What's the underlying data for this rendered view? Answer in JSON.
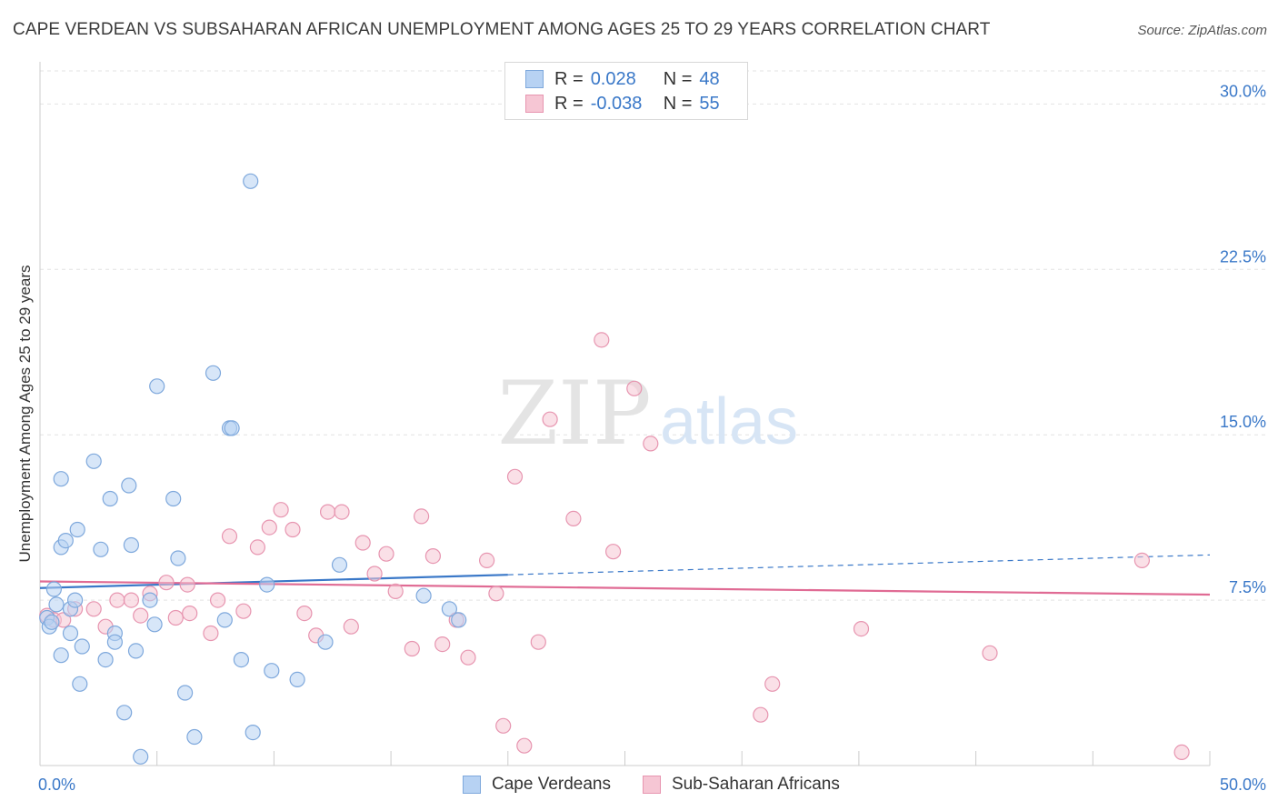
{
  "title": "CAPE VERDEAN VS SUBSAHARAN AFRICAN UNEMPLOYMENT AMONG AGES 25 TO 29 YEARS CORRELATION CHART",
  "source": "Source: ZipAtlas.com",
  "legend": {
    "r_label": "R =",
    "n_label": "N =",
    "rows": [
      {
        "name": "Cape Verdeans",
        "r": "0.028",
        "n": "48"
      },
      {
        "name": "Sub-Saharan Africans",
        "r": "-0.038",
        "n": "55"
      }
    ]
  },
  "watermark": {
    "zip": "ZIP",
    "atlas": "atlas"
  },
  "colors": {
    "blue_fill": "#b7d2f3",
    "blue_stroke": "#7ea8dc",
    "blue_line": "#3a78c8",
    "pink_fill": "#f6c6d4",
    "pink_stroke": "#e795b0",
    "pink_line": "#e06b94",
    "axis_text": "#3a78c8",
    "grid": "#e3e3e3"
  },
  "chart_data": {
    "type": "scatter",
    "title": "CAPE VERDEAN VS SUBSAHARAN AFRICAN UNEMPLOYMENT AMONG AGES 25 TO 29 YEARS CORRELATION CHART",
    "xlabel": "",
    "ylabel": "Unemployment Among Ages 25 to 29 years",
    "xlim": [
      0,
      50
    ],
    "ylim": [
      0,
      31.5
    ],
    "x_tick_labels": [
      {
        "value": 0,
        "label": "0.0%"
      },
      {
        "value": 50,
        "label": "50.0%"
      }
    ],
    "y_tick_labels": [
      {
        "value": 7.5,
        "label": "7.5%"
      },
      {
        "value": 15,
        "label": "15.0%"
      },
      {
        "value": 22.5,
        "label": "22.5%"
      },
      {
        "value": 30,
        "label": "30.0%"
      }
    ],
    "series": [
      {
        "name": "Cape Verdeans",
        "color": "blue",
        "points": [
          [
            0.3,
            6.7
          ],
          [
            0.4,
            6.3
          ],
          [
            0.5,
            6.5
          ],
          [
            0.6,
            8.0
          ],
          [
            0.7,
            7.3
          ],
          [
            0.9,
            5.0
          ],
          [
            0.9,
            9.9
          ],
          [
            0.9,
            13.0
          ],
          [
            1.1,
            10.2
          ],
          [
            1.3,
            7.1
          ],
          [
            1.3,
            6.0
          ],
          [
            1.5,
            7.5
          ],
          [
            1.6,
            10.7
          ],
          [
            1.7,
            3.7
          ],
          [
            1.8,
            5.4
          ],
          [
            2.3,
            13.8
          ],
          [
            2.6,
            9.8
          ],
          [
            2.8,
            4.8
          ],
          [
            3.0,
            12.1
          ],
          [
            3.2,
            6.0
          ],
          [
            3.2,
            5.6
          ],
          [
            3.6,
            2.4
          ],
          [
            3.8,
            12.7
          ],
          [
            3.9,
            10.0
          ],
          [
            4.1,
            5.2
          ],
          [
            4.3,
            0.4
          ],
          [
            4.7,
            7.5
          ],
          [
            4.9,
            6.4
          ],
          [
            5.0,
            17.2
          ],
          [
            5.7,
            12.1
          ],
          [
            5.9,
            9.4
          ],
          [
            6.2,
            3.3
          ],
          [
            6.6,
            1.3
          ],
          [
            7.4,
            17.8
          ],
          [
            7.9,
            6.6
          ],
          [
            8.1,
            15.3
          ],
          [
            8.2,
            15.3
          ],
          [
            8.6,
            4.8
          ],
          [
            9.0,
            26.5
          ],
          [
            9.1,
            1.5
          ],
          [
            9.7,
            8.2
          ],
          [
            9.9,
            4.3
          ],
          [
            11.0,
            3.9
          ],
          [
            12.2,
            5.6
          ],
          [
            12.8,
            9.1
          ],
          [
            16.4,
            7.7
          ],
          [
            17.5,
            7.1
          ],
          [
            17.9,
            6.6
          ]
        ]
      },
      {
        "name": "Sub-Saharan Africans",
        "color": "pink",
        "points": [
          [
            0.3,
            6.8
          ],
          [
            0.6,
            6.6
          ],
          [
            1.0,
            6.6
          ],
          [
            1.5,
            7.1
          ],
          [
            2.3,
            7.1
          ],
          [
            2.8,
            6.3
          ],
          [
            3.3,
            7.5
          ],
          [
            3.9,
            7.5
          ],
          [
            4.3,
            6.8
          ],
          [
            4.7,
            7.8
          ],
          [
            5.4,
            8.3
          ],
          [
            5.8,
            6.7
          ],
          [
            6.3,
            8.2
          ],
          [
            6.4,
            6.9
          ],
          [
            7.3,
            6.0
          ],
          [
            7.6,
            7.5
          ],
          [
            8.1,
            10.4
          ],
          [
            8.7,
            7.0
          ],
          [
            9.3,
            9.9
          ],
          [
            9.8,
            10.8
          ],
          [
            10.3,
            11.6
          ],
          [
            10.8,
            10.7
          ],
          [
            11.3,
            6.9
          ],
          [
            11.8,
            5.9
          ],
          [
            12.3,
            11.5
          ],
          [
            12.9,
            11.5
          ],
          [
            13.3,
            6.3
          ],
          [
            13.8,
            10.1
          ],
          [
            14.3,
            8.7
          ],
          [
            14.8,
            9.6
          ],
          [
            15.2,
            7.9
          ],
          [
            15.9,
            5.3
          ],
          [
            16.3,
            11.3
          ],
          [
            16.8,
            9.5
          ],
          [
            17.2,
            5.5
          ],
          [
            17.8,
            6.6
          ],
          [
            18.3,
            4.9
          ],
          [
            19.1,
            9.3
          ],
          [
            19.5,
            7.8
          ],
          [
            19.8,
            1.8
          ],
          [
            20.3,
            13.1
          ],
          [
            20.7,
            0.9
          ],
          [
            21.3,
            5.6
          ],
          [
            21.8,
            15.7
          ],
          [
            22.8,
            11.2
          ],
          [
            24.0,
            19.3
          ],
          [
            24.5,
            9.7
          ],
          [
            25.4,
            17.1
          ],
          [
            26.1,
            14.6
          ],
          [
            30.8,
            2.3
          ],
          [
            31.3,
            3.7
          ],
          [
            35.1,
            6.2
          ],
          [
            40.6,
            5.1
          ],
          [
            47.1,
            9.3
          ],
          [
            48.8,
            0.6
          ]
        ]
      }
    ],
    "trend_lines": [
      {
        "series": "Cape Verdeans",
        "solid_from": [
          0,
          8.05
        ],
        "solid_to": [
          20,
          8.65
        ],
        "dashed_to": [
          50,
          9.55
        ]
      },
      {
        "series": "Sub-Saharan Africans",
        "from": [
          0,
          8.35
        ],
        "to": [
          50,
          7.75
        ]
      }
    ],
    "grid": true,
    "legend_position": "top-center"
  }
}
